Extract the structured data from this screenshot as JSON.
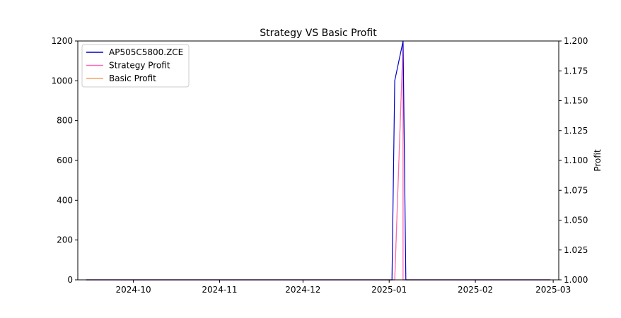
{
  "chart_data": {
    "type": "line",
    "title": "Strategy VS Basic Profit",
    "xlabel": "",
    "ylabel_left": "",
    "ylabel_right": "Profit",
    "x_ticks": [
      "2024-10",
      "2024-11",
      "2024-12",
      "2025-01",
      "2025-02",
      "2025-03"
    ],
    "x_range": [
      "2024-09-11",
      "2025-03-03"
    ],
    "y_left_ticks": [
      "0",
      "200",
      "400",
      "600",
      "800",
      "1000",
      "1200"
    ],
    "y_left_range": [
      0,
      1200
    ],
    "y_right_ticks": [
      "1.000",
      "1.025",
      "1.050",
      "1.075",
      "1.100",
      "1.125",
      "1.150",
      "1.175",
      "1.200"
    ],
    "y_right_range": [
      1.0,
      1.2
    ],
    "grid": false,
    "legend_position": "top-left",
    "series": [
      {
        "name": "AP505C5800.ZCE",
        "color": "#0000cc",
        "axis": "left",
        "points": [
          [
            "2024-09-14",
            0
          ],
          [
            "2025-01-02",
            0
          ],
          [
            "2025-01-03",
            1000
          ],
          [
            "2025-01-06",
            1200
          ],
          [
            "2025-01-07",
            0
          ],
          [
            "2025-02-28",
            0
          ]
        ]
      },
      {
        "name": "Strategy Profit",
        "color": "#ff69b4",
        "axis": "right",
        "points": [
          [
            "2024-09-14",
            1.0
          ],
          [
            "2025-01-03",
            1.0
          ],
          [
            "2025-01-06",
            1.2
          ],
          [
            "2025-01-06",
            1.0
          ],
          [
            "2025-02-28",
            1.0
          ]
        ]
      },
      {
        "name": "Basic Profit",
        "color": "#f4a460",
        "axis": "right",
        "points": [
          [
            "2024-09-14",
            1.0
          ],
          [
            "2025-01-03",
            1.0
          ],
          [
            "2025-01-06",
            1.2
          ],
          [
            "2025-01-06",
            1.0
          ],
          [
            "2025-02-28",
            1.0
          ]
        ]
      }
    ]
  }
}
